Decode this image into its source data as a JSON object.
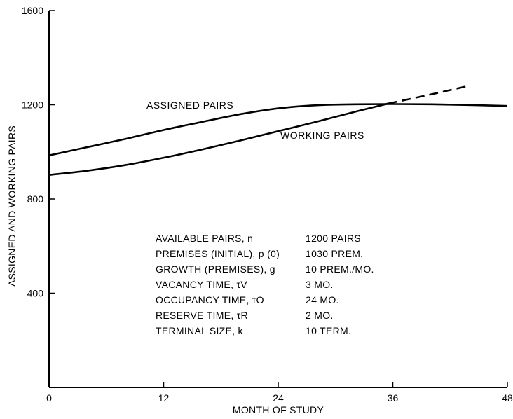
{
  "chart_data": {
    "type": "line",
    "title": "",
    "xlabel": "MONTH OF STUDY",
    "ylabel": "ASSIGNED AND WORKING PAIRS",
    "xlim": [
      0,
      48
    ],
    "ylim": [
      0,
      1600
    ],
    "xticks": [
      "0",
      "12",
      "24",
      "36",
      "48"
    ],
    "yticks": [
      "400",
      "800",
      "1200",
      "1600"
    ],
    "grid": false,
    "series": [
      {
        "name": "ASSIGNED PAIRS",
        "style": "solid",
        "x": [
          0,
          4,
          8,
          12,
          16,
          20,
          24,
          28,
          32,
          36,
          40,
          44,
          48
        ],
        "y": [
          985,
          1020,
          1055,
          1093,
          1127,
          1160,
          1185,
          1198,
          1202,
          1203,
          1202,
          1199,
          1195
        ]
      },
      {
        "name": "WORKING PAIRS",
        "style": "solid",
        "x": [
          0,
          4,
          8,
          12,
          16,
          20,
          24,
          28,
          32,
          35.5
        ],
        "y": [
          902,
          920,
          944,
          975,
          1010,
          1048,
          1088,
          1128,
          1170,
          1205
        ]
      },
      {
        "name": "",
        "style": "dashed",
        "x": [
          35.5,
          40,
          44
        ],
        "y": [
          1205,
          1244,
          1281
        ]
      }
    ],
    "annotations": [
      {
        "label": "AVAILABLE PAIRS, n",
        "value": "1200 PAIRS"
      },
      {
        "label": "PREMISES (INITIAL), p (0)",
        "value": "1030 PREM."
      },
      {
        "label": "GROWTH (PREMISES), g",
        "value": "10 PREM./MO."
      },
      {
        "label": "VACANCY TIME, τV",
        "value": "3 MO."
      },
      {
        "label": "OCCUPANCY TIME, τO",
        "value": "24 MO."
      },
      {
        "label": "RESERVE TIME, τR",
        "value": "2 MO."
      },
      {
        "label": "TERMINAL SIZE, k",
        "value": "10 TERM."
      }
    ]
  }
}
